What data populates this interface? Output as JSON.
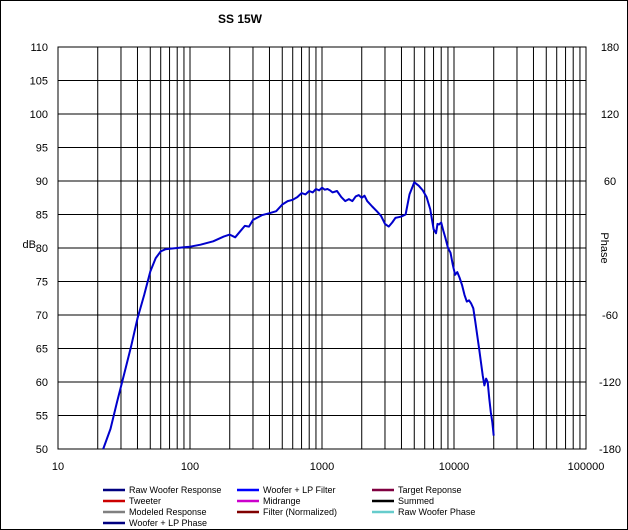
{
  "chart_data": {
    "type": "line",
    "title": "SS 15W",
    "ylabel": "dB",
    "y2label": "Phase",
    "xscale": "log",
    "xlim": [
      10,
      100000
    ],
    "ylim": [
      50,
      110
    ],
    "y2lim": [
      -180,
      180
    ],
    "grid": true,
    "x_ticks": [
      10,
      100,
      1000,
      10000,
      100000
    ],
    "x_tick_labels": [
      "10",
      "100",
      "1000",
      "10000",
      "100000"
    ],
    "y_ticks": [
      50,
      55,
      60,
      65,
      70,
      75,
      80,
      85,
      90,
      95,
      100,
      105,
      110
    ],
    "y_tick_labels": [
      "50",
      "55",
      "60",
      "65",
      "70",
      "75",
      "80",
      "85",
      "90",
      "95",
      "100",
      "105",
      "110"
    ],
    "y2_ticks": [
      -180,
      -120,
      -60,
      0,
      60,
      120,
      180
    ],
    "y2_tick_labels": [
      "-180",
      "-120",
      "-60",
      "",
      "60",
      "120",
      "180"
    ],
    "legend_placement": "bottom",
    "legend": [
      {
        "label": "Raw Woofer Response",
        "color": "#000080"
      },
      {
        "label": "Woofer + LP Filter",
        "color": "#0000ff"
      },
      {
        "label": "Target Reponse",
        "color": "#800040"
      },
      {
        "label": "Tweeter",
        "color": "#cc0000"
      },
      {
        "label": "Midrange",
        "color": "#cc00cc"
      },
      {
        "label": "Summed",
        "color": "#000000"
      },
      {
        "label": "Modeled Response",
        "color": "#808080"
      },
      {
        "label": "Filter (Normalized)",
        "color": "#800000"
      },
      {
        "label": "Raw Woofer Phase",
        "color": "#66cccc"
      },
      {
        "label": "Woofer + LP Phase",
        "color": "#000080"
      }
    ],
    "series": [
      {
        "color": "#0000cc",
        "x": [
          22,
          25,
          28,
          32,
          36,
          40,
          45,
          50,
          55,
          60,
          65,
          70,
          80,
          90,
          100,
          120,
          150,
          180,
          200,
          220,
          240,
          260,
          280,
          300,
          350,
          400,
          450,
          500,
          550,
          600,
          650,
          700,
          750,
          800,
          850,
          900,
          950,
          1000,
          1050,
          1100,
          1150,
          1200,
          1300,
          1400,
          1500,
          1600,
          1700,
          1800,
          1900,
          2000,
          2100,
          2200,
          2400,
          2600,
          2800,
          3000,
          3200,
          3400,
          3600,
          3800,
          4000,
          4300,
          4600,
          5000,
          5400,
          5800,
          6200,
          6600,
          7000,
          7300,
          7500,
          7700,
          8000,
          8300,
          8600,
          9000,
          9400,
          9800,
          10200,
          10600,
          11000,
          11500,
          12000,
          12500,
          13000,
          13500,
          14000,
          14500,
          15000,
          15500,
          16000,
          16500,
          17000,
          17500,
          18000,
          18500,
          19000,
          19500,
          20000
        ],
        "y": [
          50.0,
          53.0,
          57.0,
          61.5,
          65.5,
          69.5,
          73.0,
          76.5,
          78.5,
          79.5,
          79.8,
          79.9,
          80.0,
          80.1,
          80.2,
          80.5,
          81.0,
          81.7,
          82.0,
          81.6,
          82.5,
          83.3,
          83.2,
          84.2,
          84.9,
          85.2,
          85.5,
          86.5,
          87.0,
          87.2,
          87.6,
          88.2,
          88.0,
          88.5,
          88.3,
          88.8,
          88.6,
          89.0,
          88.7,
          88.8,
          88.6,
          88.3,
          88.5,
          87.6,
          87.0,
          87.3,
          87.0,
          87.7,
          87.9,
          87.5,
          87.8,
          87.0,
          86.2,
          85.5,
          84.8,
          83.6,
          83.2,
          83.8,
          84.5,
          84.6,
          84.7,
          85.0,
          88.0,
          89.8,
          89.3,
          88.6,
          87.6,
          85.8,
          82.8,
          82.2,
          83.6,
          83.5,
          83.8,
          82.6,
          81.5,
          80.0,
          79.3,
          77.5,
          76.0,
          76.4,
          75.6,
          74.5,
          73.0,
          72.0,
          72.2,
          71.7,
          71.0,
          69.0,
          67.0,
          65.0,
          63.0,
          61.0,
          59.5,
          60.5,
          60.0,
          57.5,
          55.5,
          54.0,
          52.0
        ]
      }
    ]
  }
}
